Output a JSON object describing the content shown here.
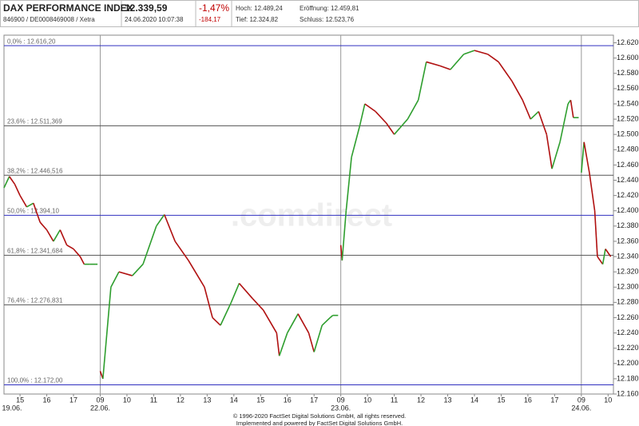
{
  "header": {
    "title": "DAX PERFORMANCE INDEX",
    "subtitle": "846900 / DE0008469008 / Xetra",
    "price": "12.339,59",
    "timestamp": "24.06.2020 10:07:38",
    "change_pct": "-1,47%",
    "change_abs": "-184,17",
    "high": "Hoch: 12.489,24",
    "open": "Eröffnung: 12.459,81",
    "low": "Tief: 12.324,82",
    "close": "Schluss: 12.523,76"
  },
  "chart_data": {
    "type": "line",
    "watermark": ".comdirect",
    "x": [
      -0.6,
      -0.4,
      -0.2,
      0,
      0.25,
      0.5,
      0.75,
      1,
      1.25,
      1.5,
      1.75,
      2,
      2.25,
      2.4,
      2.6,
      2.9,
      null,
      3.0,
      3.1,
      3.4,
      3.7,
      4.2,
      4.6,
      5.1,
      5.4,
      5.8,
      6.3,
      6.9,
      7.2,
      7.5,
      7.9,
      8.2,
      8.7,
      9.1,
      9.6,
      9.7,
      10,
      10.4,
      10.8,
      11,
      11.3,
      11.6,
      11.7,
      11.9,
      null,
      12.0,
      12.05,
      12.2,
      12.4,
      12.7,
      12.9,
      13.3,
      13.7,
      14.0,
      14.5,
      14.9,
      15.2,
      15.7,
      16.1,
      16.6,
      17.0,
      17.5,
      17.9,
      18.4,
      18.8,
      19.1,
      19.4,
      19.7,
      19.9,
      20.2,
      20.5,
      20.6,
      20.7,
      20.9,
      null,
      21.0,
      21.1,
      21.3,
      21.5,
      21.6,
      21.8,
      21.9,
      22.1
    ],
    "values": [
      12430,
      12445,
      12435,
      12420,
      12405,
      12410,
      12385,
      12375,
      12360,
      12375,
      12355,
      12350,
      12340,
      12330,
      12330,
      12330,
      null,
      12190,
      12180,
      12300,
      12320,
      12315,
      12330,
      12380,
      12395,
      12360,
      12335,
      12300,
      12260,
      12250,
      12280,
      12305,
      12285,
      12270,
      12240,
      12210,
      12240,
      12265,
      12240,
      12215,
      12250,
      12260,
      12263,
      12263,
      null,
      12355,
      12335,
      12400,
      12470,
      12510,
      12540,
      12530,
      12515,
      12500,
      12520,
      12545,
      12595,
      12590,
      12585,
      12605,
      12610,
      12605,
      12595,
      12570,
      12545,
      12520,
      12530,
      12500,
      12455,
      12490,
      12540,
      12545,
      12522,
      12522,
      null,
      12450,
      12490,
      12450,
      12400,
      12340,
      12330,
      12350,
      12340
    ],
    "up_color": "#2e9e2e",
    "down_color": "#b01010",
    "xlim": [
      -0.6,
      22.2
    ],
    "xticks": [
      {
        "value": 0,
        "label": "15"
      },
      {
        "value": 1,
        "label": "16"
      },
      {
        "value": 2,
        "label": "17"
      },
      {
        "value": 3,
        "label": "09"
      },
      {
        "value": 4,
        "label": "10"
      },
      {
        "value": 5,
        "label": "11"
      },
      {
        "value": 6,
        "label": "12"
      },
      {
        "value": 7,
        "label": "13"
      },
      {
        "value": 8,
        "label": "14"
      },
      {
        "value": 9,
        "label": "15"
      },
      {
        "value": 10,
        "label": "16"
      },
      {
        "value": 11,
        "label": "17"
      },
      {
        "value": 12,
        "label": "09"
      },
      {
        "value": 13,
        "label": "10"
      },
      {
        "value": 14,
        "label": "11"
      },
      {
        "value": 15,
        "label": "12"
      },
      {
        "value": 16,
        "label": "13"
      },
      {
        "value": 17,
        "label": "14"
      },
      {
        "value": 18,
        "label": "15"
      },
      {
        "value": 19,
        "label": "16"
      },
      {
        "value": 20,
        "label": "17"
      },
      {
        "value": 21,
        "label": "09"
      },
      {
        "value": 22,
        "label": "10"
      }
    ],
    "xdates": [
      {
        "value": -0.3,
        "label": "19.06."
      },
      {
        "value": 3,
        "label": "22.06."
      },
      {
        "value": 12,
        "label": "23.06."
      },
      {
        "value": 21,
        "label": "24.06."
      }
    ],
    "ylim": [
      12160,
      12630
    ],
    "yticks": [
      {
        "value": 12160,
        "label": "12.160"
      },
      {
        "value": 12180,
        "label": "12.180"
      },
      {
        "value": 12200,
        "label": "12.200"
      },
      {
        "value": 12220,
        "label": "12.220"
      },
      {
        "value": 12240,
        "label": "12.240"
      },
      {
        "value": 12260,
        "label": "12.260"
      },
      {
        "value": 12280,
        "label": "12.280"
      },
      {
        "value": 12300,
        "label": "12.300"
      },
      {
        "value": 12320,
        "label": "12.320"
      },
      {
        "value": 12340,
        "label": "12.340"
      },
      {
        "value": 12360,
        "label": "12.360"
      },
      {
        "value": 12380,
        "label": "12.380"
      },
      {
        "value": 12400,
        "label": "12.400"
      },
      {
        "value": 12420,
        "label": "12.420"
      },
      {
        "value": 12440,
        "label": "12.440"
      },
      {
        "value": 12460,
        "label": "12.460"
      },
      {
        "value": 12480,
        "label": "12.480"
      },
      {
        "value": 12500,
        "label": "12.500"
      },
      {
        "value": 12520,
        "label": "12.520"
      },
      {
        "value": 12540,
        "label": "12.540"
      },
      {
        "value": 12560,
        "label": "12.560"
      },
      {
        "value": 12580,
        "label": "12.580"
      },
      {
        "value": 12600,
        "label": "12.600"
      },
      {
        "value": 12620,
        "label": "12.620"
      }
    ],
    "levels": [
      {
        "value": 12616.2,
        "label": "0,0% : 12.616,20",
        "color": "#3030c0"
      },
      {
        "value": 12511.369,
        "label": "23,6% : 12.511,369",
        "color": "#555555"
      },
      {
        "value": 12446.516,
        "label": "38,2% : 12.446,516",
        "color": "#555555"
      },
      {
        "value": 12394.1,
        "label": "50,0% : 12.394,10",
        "color": "#3030c0"
      },
      {
        "value": 12341.684,
        "label": "61,8% : 12.341,684",
        "color": "#555555"
      },
      {
        "value": 12276.831,
        "label": "76,4% : 12.276,831",
        "color": "#555555"
      },
      {
        "value": 12172,
        "label": "100,0% : 12.172,00",
        "color": "#3030c0"
      }
    ],
    "footer": [
      "© 1996-2020 FactSet Digital Solutions GmbH, all rights reserved.",
      "Implemented and powered by FactSet Digital Solutions GmbH."
    ]
  }
}
